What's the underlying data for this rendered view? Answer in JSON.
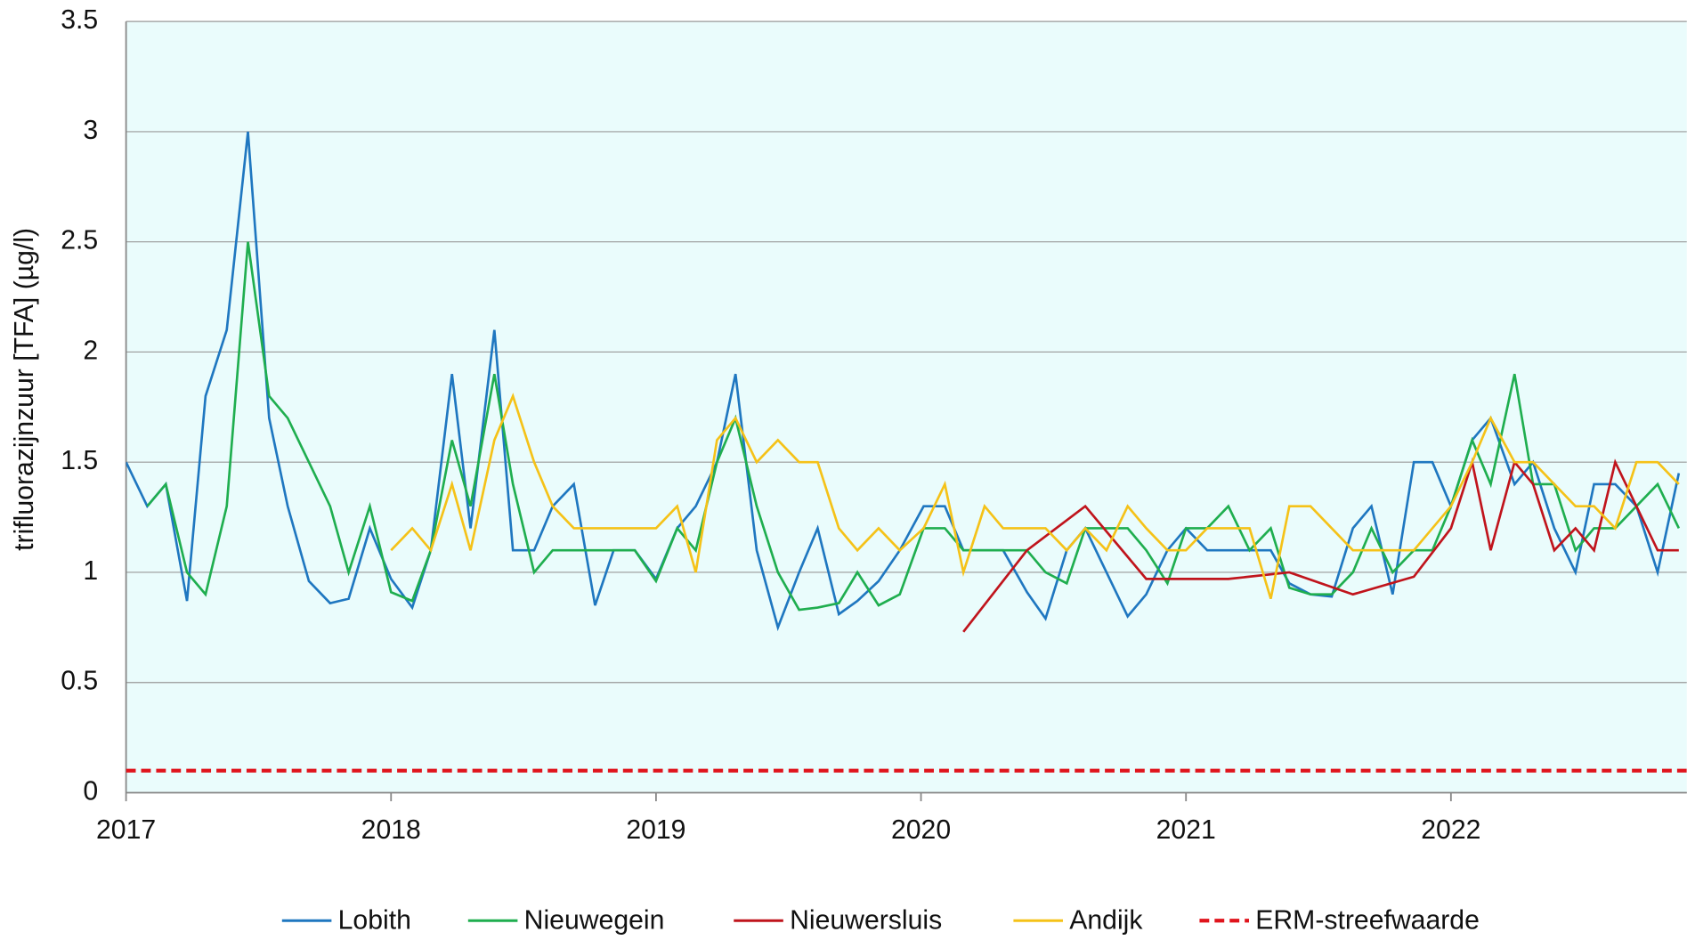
{
  "chart_data": {
    "type": "line",
    "y_label": "trifluorazijnzuur [TFA] (µg/l)",
    "xlim": [
      2017,
      2022.89
    ],
    "xticks": [
      2017,
      2018,
      2019,
      2020,
      2021,
      2022
    ],
    "ylim": [
      0,
      3.5
    ],
    "yticks": [
      0,
      0.5,
      1,
      1.5,
      2,
      2.5,
      3,
      3.5
    ],
    "grid": true,
    "legend": "bottom",
    "background": "#eafcfc",
    "x": [
      2017.0,
      2017.08,
      2017.15,
      2017.23,
      2017.3,
      2017.38,
      2017.46,
      2017.54,
      2017.61,
      2017.69,
      2017.77,
      2017.84,
      2017.92,
      2018.0,
      2018.08,
      2018.15,
      2018.23,
      2018.3,
      2018.39,
      2018.46,
      2018.54,
      2018.61,
      2018.69,
      2018.77,
      2018.84,
      2018.92,
      2019.0,
      2019.08,
      2019.15,
      2019.23,
      2019.3,
      2019.38,
      2019.46,
      2019.54,
      2019.61,
      2019.69,
      2019.76,
      2019.84,
      2019.92,
      2020.01,
      2020.09,
      2020.16,
      2020.24,
      2020.31,
      2020.4,
      2020.47,
      2020.55,
      2020.62,
      2020.7,
      2020.78,
      2020.85,
      2020.93,
      2021.0,
      2021.08,
      2021.16,
      2021.24,
      2021.32,
      2021.39,
      2021.47,
      2021.55,
      2021.63,
      2021.7,
      2021.78,
      2021.86,
      2021.93,
      2022.0,
      2022.08,
      2022.15,
      2022.24,
      2022.31,
      2022.39,
      2022.47,
      2022.54,
      2022.62,
      2022.7,
      2022.78,
      2022.86
    ],
    "series": [
      {
        "name": "Lobith",
        "color": "#1f77c0",
        "values": [
          1.5,
          1.3,
          1.4,
          0.87,
          1.8,
          2.1,
          3.0,
          1.7,
          1.3,
          0.96,
          0.86,
          0.88,
          1.2,
          0.97,
          0.84,
          1.1,
          1.9,
          1.2,
          2.1,
          1.1,
          1.1,
          1.3,
          1.4,
          0.85,
          1.1,
          1.1,
          0.97,
          1.2,
          1.3,
          1.5,
          1.9,
          1.1,
          0.75,
          1.0,
          1.2,
          0.81,
          0.87,
          0.96,
          1.1,
          1.3,
          1.3,
          1.1,
          1.1,
          1.1,
          0.91,
          0.79,
          1.1,
          1.2,
          1.0,
          0.8,
          0.9,
          1.1,
          1.2,
          1.1,
          1.1,
          1.1,
          1.1,
          0.95,
          0.9,
          0.89,
          1.2,
          1.3,
          0.9,
          1.5,
          1.5,
          1.3,
          1.6,
          1.7,
          1.4,
          1.5,
          1.2,
          1.0,
          1.4,
          1.4,
          1.3,
          1.0,
          1.45
        ]
      },
      {
        "name": "Nieuwegein",
        "color": "#1fae4f",
        "values": [
          null,
          1.3,
          1.4,
          1.0,
          0.9,
          1.3,
          2.5,
          1.8,
          1.7,
          1.5,
          1.3,
          1.0,
          1.3,
          0.91,
          0.87,
          1.1,
          1.6,
          1.3,
          1.9,
          1.4,
          1.0,
          1.1,
          1.1,
          1.1,
          1.1,
          1.1,
          0.96,
          1.2,
          1.1,
          1.5,
          1.7,
          1.3,
          1.0,
          0.83,
          0.84,
          0.86,
          1.0,
          0.85,
          0.9,
          1.2,
          1.2,
          1.1,
          1.1,
          1.1,
          1.1,
          1.0,
          0.95,
          1.2,
          1.2,
          1.2,
          1.1,
          0.95,
          1.2,
          1.2,
          1.3,
          1.1,
          1.2,
          0.93,
          0.9,
          0.9,
          1.0,
          1.2,
          1.0,
          1.1,
          1.1,
          1.3,
          1.6,
          1.4,
          1.9,
          1.4,
          1.4,
          1.1,
          1.2,
          1.2,
          1.3,
          1.4,
          1.2
        ]
      },
      {
        "name": "Nieuwersluis",
        "color": "#c0141c",
        "x": [
          2020.16,
          2020.4,
          2020.62,
          2020.85,
          2021.16,
          2021.39,
          2021.63,
          2021.86,
          2022.0,
          2022.08,
          2022.15,
          2022.24,
          2022.31,
          2022.39,
          2022.47,
          2022.54,
          2022.62,
          2022.7,
          2022.78,
          2022.86
        ],
        "values": [
          0.73,
          1.1,
          1.3,
          0.97,
          0.97,
          1.0,
          0.9,
          0.98,
          1.2,
          1.5,
          1.1,
          1.5,
          1.4,
          1.1,
          1.2,
          1.1,
          1.5,
          1.3,
          1.1,
          1.1
        ]
      },
      {
        "name": "Andijk",
        "color": "#f5c218",
        "values": [
          null,
          null,
          null,
          null,
          null,
          null,
          null,
          null,
          null,
          null,
          null,
          null,
          null,
          1.1,
          1.2,
          1.1,
          1.4,
          1.1,
          1.6,
          1.8,
          1.5,
          1.3,
          1.2,
          1.2,
          1.2,
          1.2,
          1.2,
          1.3,
          1.0,
          1.6,
          1.7,
          1.5,
          1.6,
          1.5,
          1.5,
          1.2,
          1.1,
          1.2,
          1.1,
          1.2,
          1.4,
          1.0,
          1.3,
          1.2,
          1.2,
          1.2,
          1.1,
          1.2,
          1.1,
          1.3,
          1.2,
          1.1,
          1.1,
          1.2,
          1.2,
          1.2,
          0.88,
          1.3,
          1.3,
          1.2,
          1.1,
          1.1,
          1.1,
          1.1,
          1.2,
          1.3,
          1.5,
          1.7,
          1.5,
          1.5,
          1.4,
          1.3,
          1.3,
          1.2,
          1.5,
          1.5,
          1.4
        ]
      },
      {
        "name": "ERM-streefwaarde",
        "color": "#e0141c",
        "dashed": true,
        "x": [
          2017,
          2022.89
        ],
        "values": [
          0.1,
          0.1
        ]
      }
    ]
  }
}
